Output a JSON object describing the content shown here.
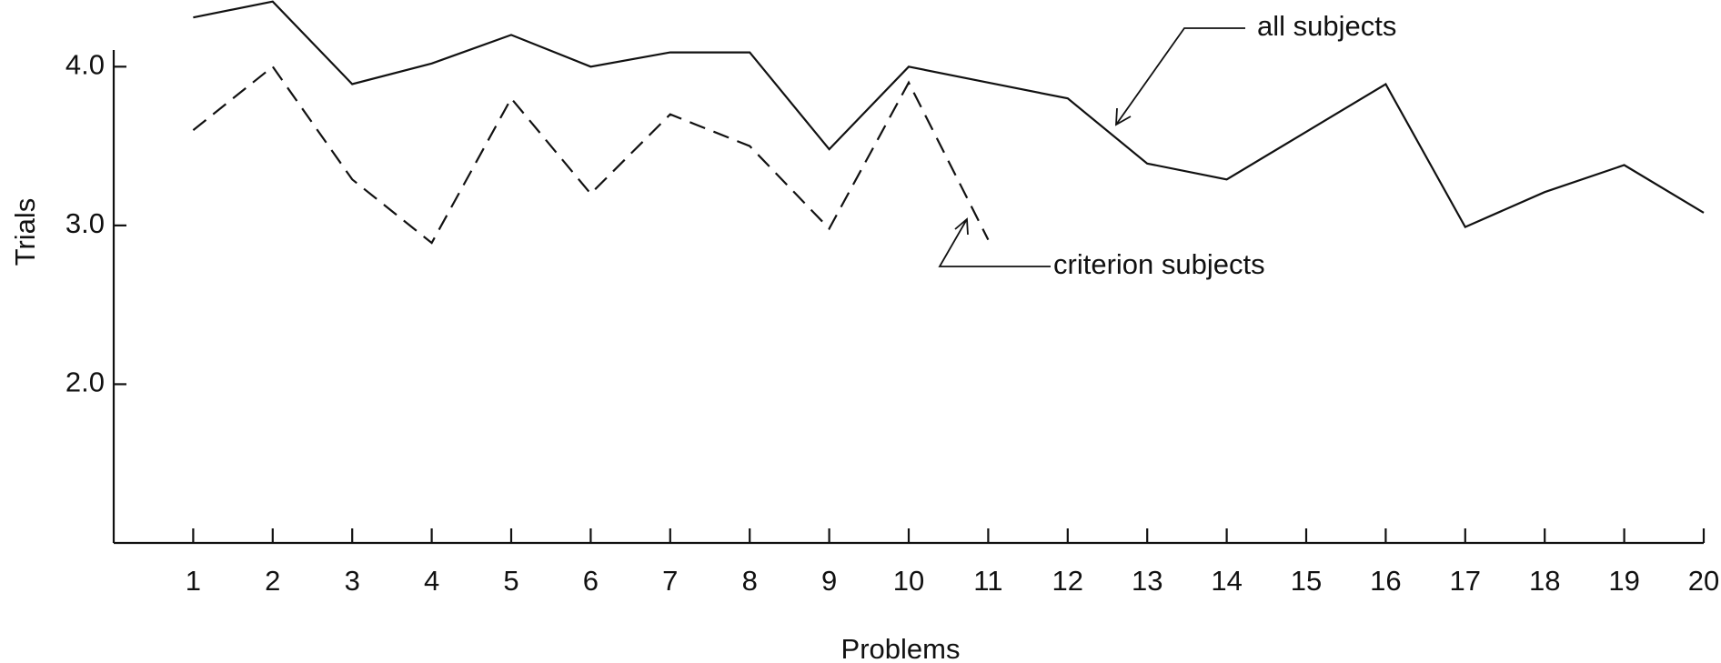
{
  "chart_data": {
    "type": "line",
    "xlabel": "Problems",
    "ylabel": "Trials",
    "x": [
      1,
      2,
      3,
      4,
      5,
      6,
      7,
      8,
      9,
      10,
      11,
      12,
      13,
      14,
      15,
      16,
      17,
      18,
      19,
      20
    ],
    "xlim": [
      0,
      20
    ],
    "xticks": [
      1,
      2,
      3,
      4,
      5,
      6,
      7,
      8,
      9,
      10,
      11,
      12,
      13,
      14,
      15,
      16,
      17,
      18,
      19,
      20
    ],
    "ylim": [
      1,
      4.42
    ],
    "yticks": [
      {
        "value": 2,
        "label": "2.0"
      },
      {
        "value": 3,
        "label": "3.0"
      },
      {
        "value": 4,
        "label": "4.0"
      }
    ],
    "grid": false,
    "series": [
      {
        "name": "all subjects",
        "color": "#111111",
        "dash": false,
        "values": [
          4.31,
          4.41,
          3.89,
          4.02,
          4.2,
          4.0,
          4.09,
          4.09,
          3.48,
          4.0,
          3.9,
          3.8,
          3.39,
          3.29,
          3.59,
          3.89,
          2.99,
          3.21,
          3.38,
          3.08
        ]
      },
      {
        "name": "criterion subjects",
        "color": "#111111",
        "dash": true,
        "values": [
          3.6,
          4.0,
          3.29,
          2.89,
          3.8,
          3.2,
          3.7,
          3.5,
          2.98,
          3.9,
          2.91,
          null,
          null,
          null,
          null,
          null,
          null,
          null,
          null,
          null
        ]
      }
    ]
  }
}
